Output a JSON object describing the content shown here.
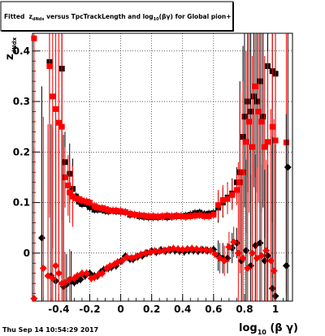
{
  "page": {
    "footer_timestamp": "Thu Sep 14 10:54:29 2017"
  },
  "chart_data": {
    "type": "scatter",
    "title": {
      "prefix": "Fitted  z",
      "sub1": "dNdx",
      "middle": " versus TpcTrackLength and log",
      "sub2": "10",
      "suffix": "(βγ) for Global pion+"
    },
    "xlabel": {
      "main": "log",
      "sub": "10",
      "rest": " (β γ)"
    },
    "ylabel": {
      "main": "z",
      "sub": "dNdx"
    },
    "xlim": [
      -0.57,
      1.11
    ],
    "ylim": [
      -0.095,
      0.435
    ],
    "x_ticks": [
      "-0.4",
      "-0.2",
      "0",
      "0.2",
      "0.4",
      "0.6",
      "0.8",
      "1"
    ],
    "x_tick_values": [
      -0.4,
      -0.2,
      0,
      0.2,
      0.4,
      0.6,
      0.8,
      1.0
    ],
    "y_ticks": [
      "0",
      "0.1",
      "0.2",
      "0.3",
      "0.4"
    ],
    "y_tick_values": [
      0,
      0.1,
      0.2,
      0.3,
      0.4
    ],
    "grid": true,
    "series": [
      {
        "color": "#000000",
        "marker": "square",
        "values": [
          [
            -0.46,
            0.378
          ],
          [
            -0.38,
            0.365
          ],
          [
            -0.36,
            0.18
          ],
          [
            -0.33,
            0.157
          ],
          [
            -0.31,
            0.127
          ],
          [
            -0.29,
            0.112
          ],
          [
            -0.27,
            0.102
          ],
          [
            -0.25,
            0.097
          ],
          [
            -0.22,
            0.097
          ],
          [
            -0.2,
            0.091
          ],
          [
            -0.17,
            0.086
          ],
          [
            -0.15,
            0.086
          ],
          [
            -0.12,
            0.086
          ],
          [
            -0.1,
            0.084
          ],
          [
            -0.08,
            0.083
          ],
          [
            -0.05,
            0.084
          ],
          [
            -0.03,
            0.083
          ],
          [
            0.0,
            0.082
          ],
          [
            0.03,
            0.081
          ],
          [
            0.06,
            0.076
          ],
          [
            0.09,
            0.076
          ],
          [
            0.12,
            0.073
          ],
          [
            0.15,
            0.072
          ],
          [
            0.18,
            0.071
          ],
          [
            0.21,
            0.071
          ],
          [
            0.24,
            0.071
          ],
          [
            0.27,
            0.072
          ],
          [
            0.3,
            0.071
          ],
          [
            0.33,
            0.072
          ],
          [
            0.36,
            0.073
          ],
          [
            0.39,
            0.073
          ],
          [
            0.42,
            0.074
          ],
          [
            0.45,
            0.076
          ],
          [
            0.48,
            0.079
          ],
          [
            0.51,
            0.08
          ],
          [
            0.54,
            0.077
          ],
          [
            0.57,
            0.078
          ],
          [
            0.6,
            0.079
          ],
          [
            0.63,
            0.09
          ],
          [
            0.66,
            0.1
          ],
          [
            0.69,
            0.11
          ],
          [
            0.72,
            0.118
          ],
          [
            0.75,
            0.14
          ],
          [
            0.77,
            0.16
          ],
          [
            0.79,
            0.23
          ],
          [
            0.8,
            0.27
          ],
          [
            0.82,
            0.3
          ],
          [
            0.84,
            0.28
          ],
          [
            0.86,
            0.31
          ],
          [
            0.88,
            0.3
          ],
          [
            0.9,
            0.34
          ],
          [
            0.92,
            0.27
          ],
          [
            0.95,
            0.37
          ],
          [
            0.98,
            0.36
          ],
          [
            1.0,
            0.355
          ]
        ]
      },
      {
        "color": "#ff0000",
        "marker": "square",
        "values": [
          [
            -0.56,
            0.425
          ],
          [
            -0.46,
            0.37
          ],
          [
            -0.44,
            0.31
          ],
          [
            -0.42,
            0.285
          ],
          [
            -0.4,
            0.258
          ],
          [
            -0.38,
            0.25
          ],
          [
            -0.36,
            0.15
          ],
          [
            -0.34,
            0.134
          ],
          [
            -0.33,
            0.12
          ],
          [
            -0.31,
            0.112
          ],
          [
            -0.29,
            0.108
          ],
          [
            -0.27,
            0.107
          ],
          [
            -0.25,
            0.104
          ],
          [
            -0.22,
            0.102
          ],
          [
            -0.2,
            0.1
          ],
          [
            -0.17,
            0.093
          ],
          [
            -0.15,
            0.09
          ],
          [
            -0.12,
            0.089
          ],
          [
            -0.1,
            0.087
          ],
          [
            -0.08,
            0.085
          ],
          [
            -0.05,
            0.084
          ],
          [
            -0.03,
            0.084
          ],
          [
            0.0,
            0.083
          ],
          [
            0.03,
            0.081
          ],
          [
            0.06,
            0.078
          ],
          [
            0.09,
            0.076
          ],
          [
            0.12,
            0.075
          ],
          [
            0.15,
            0.074
          ],
          [
            0.18,
            0.073
          ],
          [
            0.21,
            0.073
          ],
          [
            0.24,
            0.072
          ],
          [
            0.27,
            0.073
          ],
          [
            0.3,
            0.074
          ],
          [
            0.33,
            0.073
          ],
          [
            0.36,
            0.074
          ],
          [
            0.39,
            0.073
          ],
          [
            0.42,
            0.072
          ],
          [
            0.45,
            0.073
          ],
          [
            0.48,
            0.074
          ],
          [
            0.51,
            0.075
          ],
          [
            0.54,
            0.073
          ],
          [
            0.57,
            0.073
          ],
          [
            0.6,
            0.076
          ],
          [
            0.63,
            0.095
          ],
          [
            0.66,
            0.105
          ],
          [
            0.69,
            0.107
          ],
          [
            0.72,
            0.115
          ],
          [
            0.75,
            0.125
          ],
          [
            0.77,
            0.14
          ],
          [
            0.79,
            0.16
          ],
          [
            0.81,
            0.22
          ],
          [
            0.83,
            0.26
          ],
          [
            0.85,
            0.21
          ],
          [
            0.87,
            0.33
          ],
          [
            0.89,
            0.28
          ],
          [
            0.91,
            0.26
          ],
          [
            0.93,
            0.21
          ],
          [
            0.95,
            0.22
          ],
          [
            0.98,
            0.25
          ],
          [
            1.0,
            0.223
          ],
          [
            1.07,
            0.219
          ]
        ]
      },
      {
        "color": "#000000",
        "marker": "diamond",
        "values": [
          [
            -0.51,
            0.03
          ],
          [
            -0.45,
            -0.045
          ],
          [
            -0.42,
            -0.055
          ],
          [
            -0.37,
            -0.066
          ],
          [
            -0.35,
            -0.062
          ],
          [
            -0.32,
            -0.056
          ],
          [
            -0.3,
            -0.058
          ],
          [
            -0.28,
            -0.054
          ],
          [
            -0.26,
            -0.052
          ],
          [
            -0.23,
            -0.045
          ],
          [
            -0.2,
            -0.04
          ],
          [
            -0.17,
            -0.045
          ],
          [
            -0.15,
            -0.045
          ],
          [
            -0.13,
            -0.038
          ],
          [
            -0.11,
            -0.033
          ],
          [
            -0.08,
            -0.03
          ],
          [
            -0.06,
            -0.028
          ],
          [
            -0.03,
            -0.025
          ],
          [
            0.0,
            -0.016
          ],
          [
            0.03,
            -0.006
          ],
          [
            0.06,
            -0.012
          ],
          [
            0.08,
            -0.012
          ],
          [
            0.11,
            -0.007
          ],
          [
            0.14,
            -0.005
          ],
          [
            0.17,
            0.0
          ],
          [
            0.2,
            0.004
          ],
          [
            0.23,
            0.002
          ],
          [
            0.26,
            0.006
          ],
          [
            0.29,
            0.004
          ],
          [
            0.32,
            0.006
          ],
          [
            0.35,
            0.005
          ],
          [
            0.38,
            0.004
          ],
          [
            0.41,
            0.003
          ],
          [
            0.44,
            0.005
          ],
          [
            0.47,
            0.005
          ],
          [
            0.5,
            0.004
          ],
          [
            0.53,
            0.006
          ],
          [
            0.56,
            0.005
          ],
          [
            0.6,
            0.007
          ],
          [
            0.63,
            -0.005
          ],
          [
            0.66,
            -0.01
          ],
          [
            0.69,
            -0.01
          ],
          [
            0.72,
            0.01
          ],
          [
            0.75,
            0.02
          ],
          [
            0.78,
            -0.015
          ],
          [
            0.81,
            0.005
          ],
          [
            0.84,
            -0.025
          ],
          [
            0.87,
            0.015
          ],
          [
            0.9,
            0.02
          ],
          [
            0.93,
            -0.015
          ],
          [
            0.95,
            -0.005
          ],
          [
            0.98,
            -0.07
          ],
          [
            1.0,
            -0.085
          ],
          [
            1.07,
            -0.025
          ],
          [
            1.08,
            0.17
          ]
        ]
      },
      {
        "color": "#ff0000",
        "marker": "diamond",
        "values": [
          [
            -0.56,
            -0.09
          ],
          [
            -0.5,
            -0.03
          ],
          [
            -0.47,
            -0.045
          ],
          [
            -0.44,
            -0.05
          ],
          [
            -0.42,
            -0.025
          ],
          [
            -0.4,
            -0.04
          ],
          [
            -0.38,
            -0.06
          ],
          [
            -0.36,
            -0.058
          ],
          [
            -0.33,
            -0.052
          ],
          [
            -0.3,
            -0.05
          ],
          [
            -0.28,
            -0.045
          ],
          [
            -0.25,
            -0.04
          ],
          [
            -0.22,
            -0.04
          ],
          [
            -0.19,
            -0.05
          ],
          [
            -0.17,
            -0.048
          ],
          [
            -0.14,
            -0.042
          ],
          [
            -0.12,
            -0.04
          ],
          [
            -0.09,
            -0.03
          ],
          [
            -0.07,
            -0.026
          ],
          [
            -0.04,
            -0.022
          ],
          [
            -0.02,
            -0.018
          ],
          [
            0.01,
            -0.015
          ],
          [
            0.04,
            -0.008
          ],
          [
            0.07,
            -0.01
          ],
          [
            0.1,
            -0.007
          ],
          [
            0.13,
            -0.003
          ],
          [
            0.16,
            0.0
          ],
          [
            0.19,
            0.002
          ],
          [
            0.22,
            0.004
          ],
          [
            0.25,
            0.004
          ],
          [
            0.28,
            0.005
          ],
          [
            0.31,
            0.007
          ],
          [
            0.34,
            0.009
          ],
          [
            0.37,
            0.008
          ],
          [
            0.4,
            0.007
          ],
          [
            0.43,
            0.008
          ],
          [
            0.46,
            0.009
          ],
          [
            0.49,
            0.008
          ],
          [
            0.52,
            0.007
          ],
          [
            0.55,
            0.006
          ],
          [
            0.58,
            0.005
          ],
          [
            0.61,
            -0.002
          ],
          [
            0.64,
            -0.01
          ],
          [
            0.67,
            -0.015
          ],
          [
            0.7,
            0.012
          ],
          [
            0.73,
            0.022
          ],
          [
            0.76,
            0.0
          ],
          [
            0.79,
            -0.01
          ],
          [
            0.82,
            -0.03
          ],
          [
            0.85,
            0.0
          ],
          [
            0.88,
            -0.01
          ],
          [
            0.91,
            -0.005
          ],
          [
            0.94,
            0.005
          ],
          [
            0.97,
            -0.015
          ],
          [
            0.99,
            -0.035
          ]
        ]
      }
    ]
  }
}
